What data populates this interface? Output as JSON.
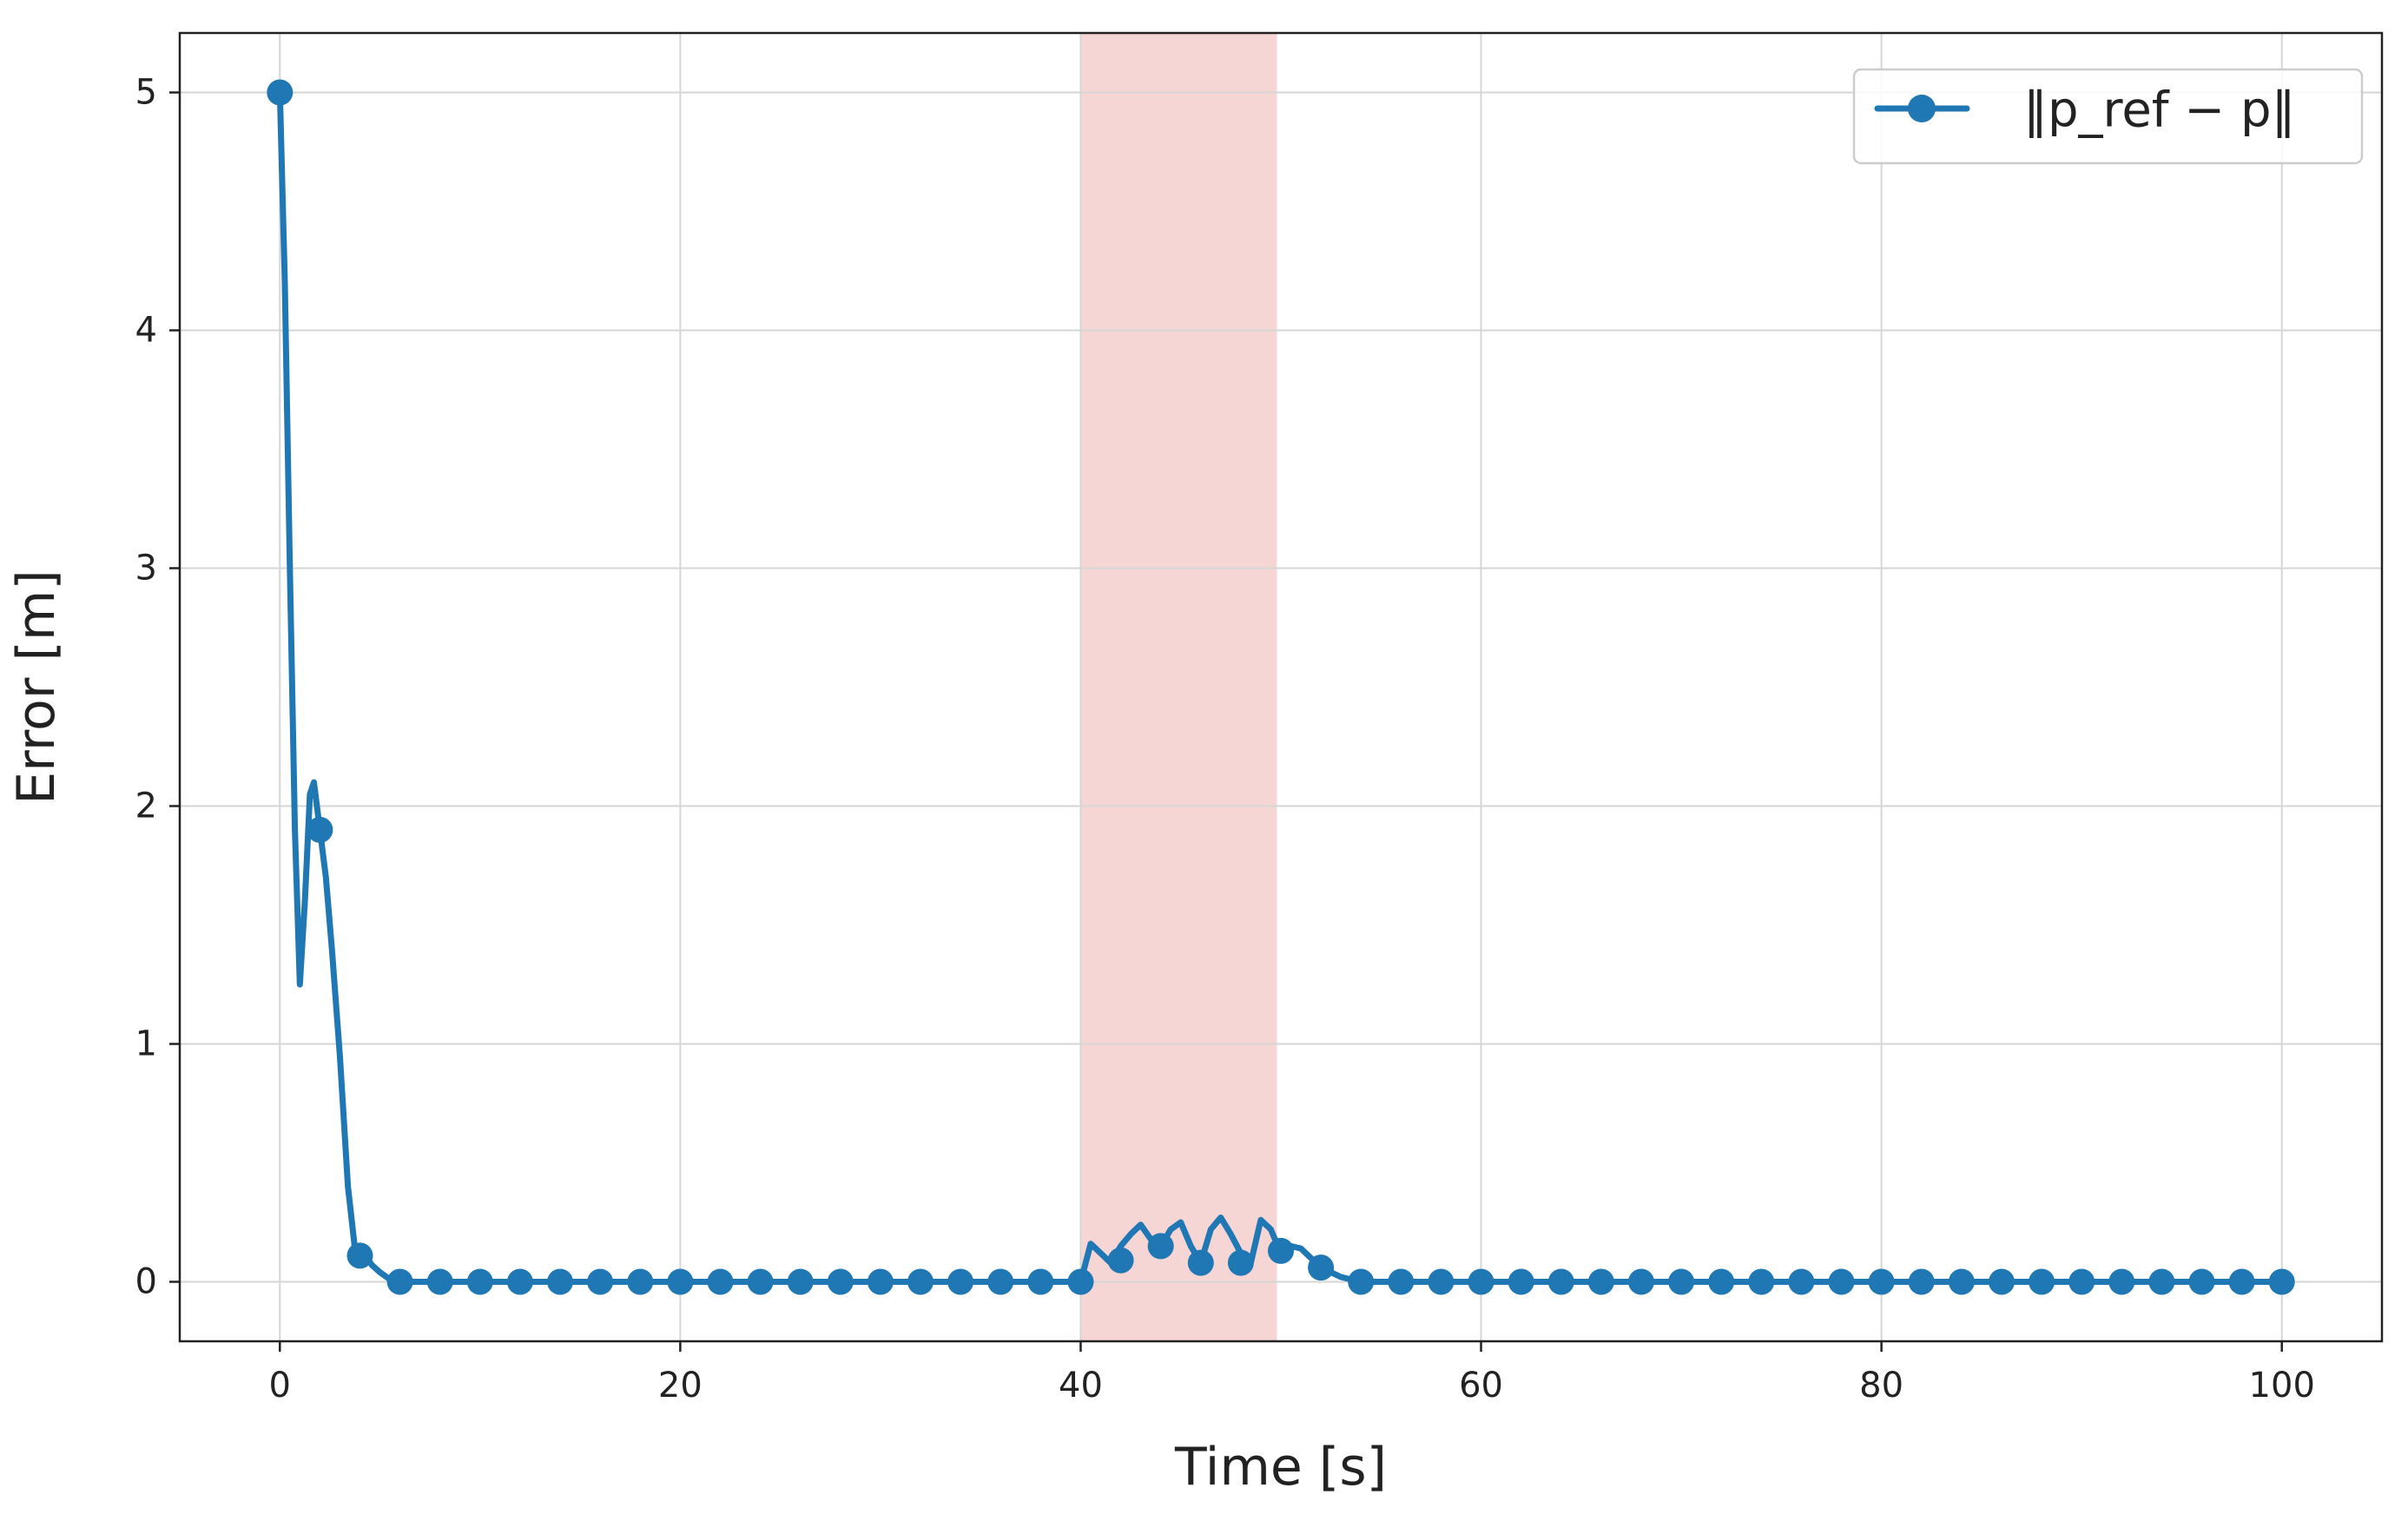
{
  "chart_data": {
    "type": "line",
    "xlabel": "Time [s]",
    "ylabel": "Error [m]",
    "xlim": [
      -5,
      105
    ],
    "ylim": [
      -0.25,
      5.25
    ],
    "xticks": [
      "0",
      "20",
      "40",
      "60",
      "80",
      "100"
    ],
    "yticks": [
      "0",
      "1",
      "2",
      "3",
      "4",
      "5"
    ],
    "grid": true,
    "legend_position": "top-right",
    "shaded_region": {
      "x_start": 40,
      "x_end": 49.8,
      "color": "#f6d5d5"
    },
    "series": [
      {
        "name": "‖p_ref − p‖",
        "color": "#1f77b4",
        "line": [
          [
            0,
            5.0
          ],
          [
            0.25,
            4.2
          ],
          [
            0.5,
            3.0
          ],
          [
            0.75,
            1.9
          ],
          [
            1.0,
            1.25
          ],
          [
            1.25,
            1.6
          ],
          [
            1.5,
            2.05
          ],
          [
            1.7,
            2.1
          ],
          [
            2.0,
            1.9
          ],
          [
            2.3,
            1.7
          ],
          [
            2.6,
            1.4
          ],
          [
            3.0,
            0.95
          ],
          [
            3.4,
            0.4
          ],
          [
            3.8,
            0.1
          ],
          [
            4.2,
            0.12
          ],
          [
            4.6,
            0.07
          ],
          [
            5.0,
            0.04
          ],
          [
            5.5,
            0.01
          ],
          [
            6,
            0.0
          ],
          [
            40,
            0.0
          ],
          [
            40.5,
            0.16
          ],
          [
            41,
            0.12
          ],
          [
            41.5,
            0.08
          ],
          [
            42,
            0.15
          ],
          [
            42.5,
            0.2
          ],
          [
            43,
            0.24
          ],
          [
            43.5,
            0.18
          ],
          [
            44,
            0.15
          ],
          [
            44.5,
            0.22
          ],
          [
            45,
            0.25
          ],
          [
            45.5,
            0.15
          ],
          [
            46,
            0.08
          ],
          [
            46.5,
            0.22
          ],
          [
            47,
            0.27
          ],
          [
            47.5,
            0.2
          ],
          [
            48,
            0.12
          ],
          [
            48.5,
            0.08
          ],
          [
            49,
            0.26
          ],
          [
            49.5,
            0.22
          ],
          [
            50,
            0.12
          ],
          [
            50.5,
            0.15
          ],
          [
            51,
            0.14
          ],
          [
            51.5,
            0.1
          ],
          [
            52,
            0.06
          ],
          [
            52.5,
            0.04
          ],
          [
            53,
            0.02
          ],
          [
            54,
            0.0
          ],
          [
            100,
            0.0
          ]
        ],
        "markers": [
          [
            0,
            5.0
          ],
          [
            2,
            1.9
          ],
          [
            4,
            0.11
          ],
          [
            6,
            0
          ],
          [
            8,
            0
          ],
          [
            10,
            0
          ],
          [
            12,
            0
          ],
          [
            14,
            0
          ],
          [
            16,
            0
          ],
          [
            18,
            0
          ],
          [
            20,
            0
          ],
          [
            22,
            0
          ],
          [
            24,
            0
          ],
          [
            26,
            0
          ],
          [
            28,
            0
          ],
          [
            30,
            0
          ],
          [
            32,
            0
          ],
          [
            34,
            0
          ],
          [
            36,
            0
          ],
          [
            38,
            0
          ],
          [
            40,
            0
          ],
          [
            42,
            0.09
          ],
          [
            44,
            0.15
          ],
          [
            46,
            0.08
          ],
          [
            48,
            0.08
          ],
          [
            50,
            0.13
          ],
          [
            52,
            0.06
          ],
          [
            54,
            0
          ],
          [
            56,
            0
          ],
          [
            58,
            0
          ],
          [
            60,
            0
          ],
          [
            62,
            0
          ],
          [
            64,
            0
          ],
          [
            66,
            0
          ],
          [
            68,
            0
          ],
          [
            70,
            0
          ],
          [
            72,
            0
          ],
          [
            74,
            0
          ],
          [
            76,
            0
          ],
          [
            78,
            0
          ],
          [
            80,
            0
          ],
          [
            82,
            0
          ],
          [
            84,
            0
          ],
          [
            86,
            0
          ],
          [
            88,
            0
          ],
          [
            90,
            0
          ],
          [
            92,
            0
          ],
          [
            94,
            0
          ],
          [
            96,
            0
          ],
          [
            98,
            0
          ],
          [
            100,
            0
          ]
        ]
      }
    ]
  }
}
